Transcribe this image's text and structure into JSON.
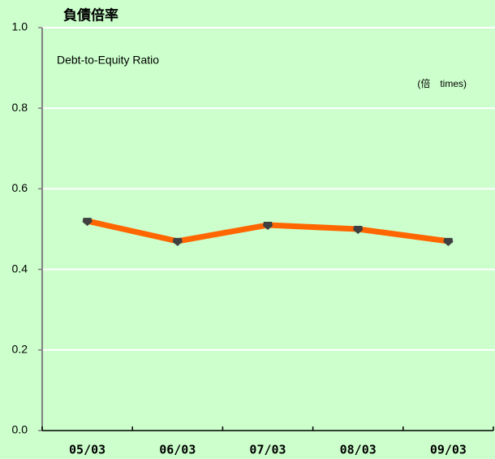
{
  "chart_data": {
    "type": "line",
    "title": "負債倍率",
    "subtitle": "Debt-to-Equity Ratio",
    "unit": "(倍　times)",
    "categories": [
      "05/03",
      "06/03",
      "07/03",
      "08/03",
      "09/03"
    ],
    "series": [
      {
        "name": "Debt-to-Equity Ratio",
        "color": "#ff6600",
        "values": [
          0.52,
          0.47,
          0.51,
          0.5,
          0.47
        ]
      }
    ],
    "ylim": [
      0,
      1.0
    ],
    "yticks": [
      {
        "value": 0,
        "label": "0.0"
      },
      0.2,
      0.4,
      0.6,
      0.8,
      {
        "value": 1.0,
        "label": "1.0"
      }
    ],
    "grid": true,
    "background": "#ccffcc"
  }
}
